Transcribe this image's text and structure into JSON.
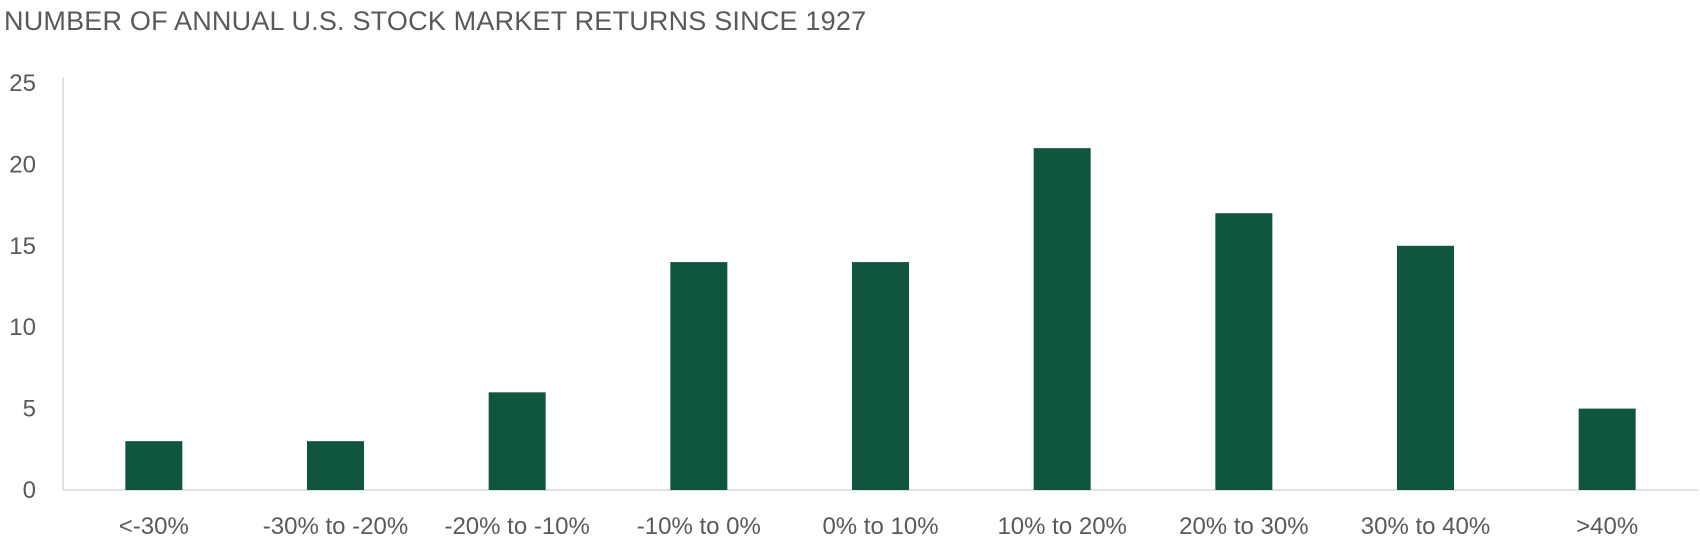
{
  "chart_data": {
    "type": "bar",
    "title": "NUMBER OF ANNUAL U.S. STOCK MARKET RETURNS SINCE 1927",
    "xlabel": "",
    "ylabel": "",
    "categories": [
      "<-30%",
      "-30% to -20%",
      "-20% to -10%",
      "-10% to 0%",
      "0% to 10%",
      "10% to 20%",
      "20% to 30%",
      "30% to 40%",
      ">40%"
    ],
    "values": [
      3,
      3,
      6,
      14,
      14,
      21,
      17,
      15,
      5
    ],
    "ylim": [
      0,
      25
    ],
    "yticks": [
      "0",
      "5",
      "10",
      "15",
      "20",
      "25"
    ],
    "grid": false,
    "bar_color": "#10553F"
  }
}
